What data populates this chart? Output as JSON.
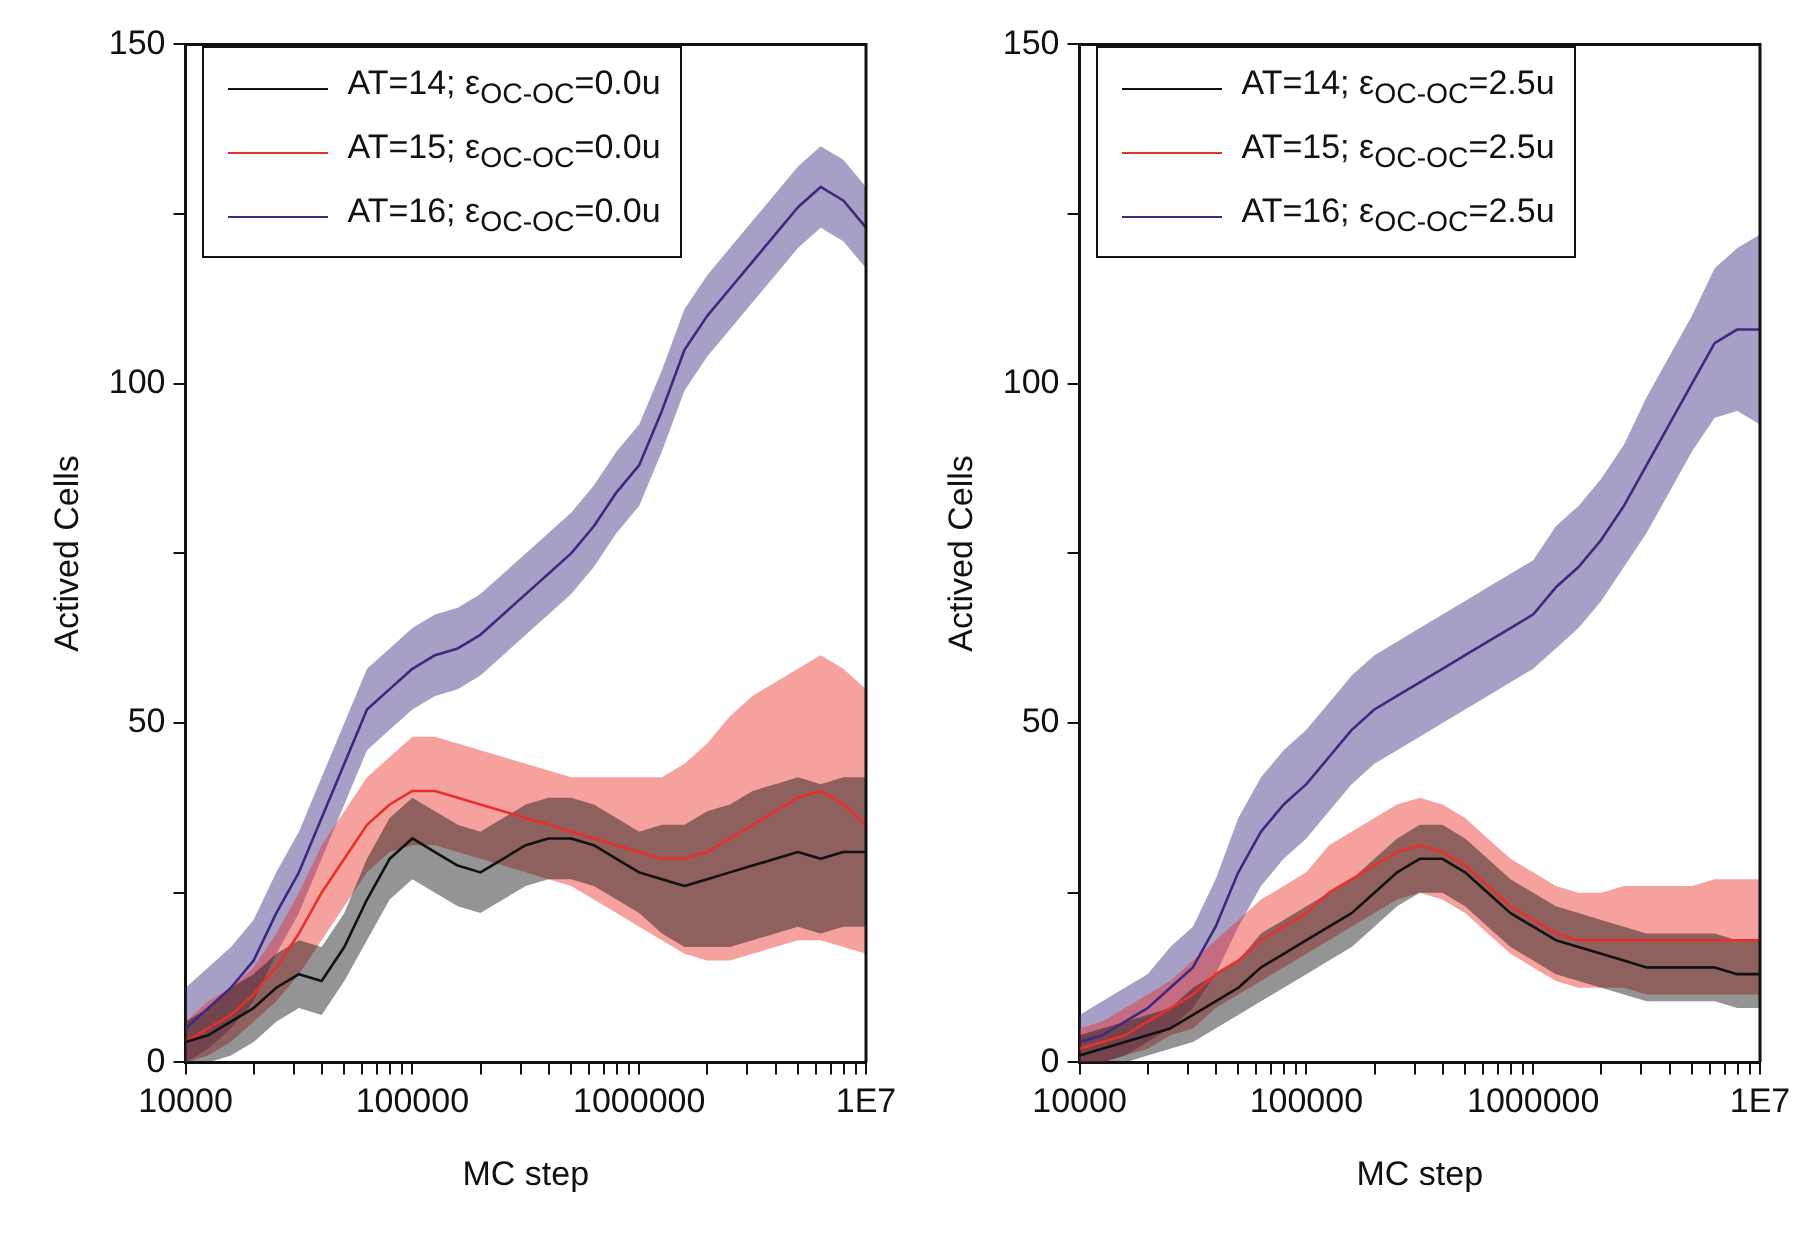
{
  "chart_data": [
    {
      "type": "line",
      "xlabel": "MC step",
      "ylabel": "Actived Cells",
      "log": "x",
      "legend": "top left",
      "grid": false,
      "xlim": [
        10000,
        10000000
      ],
      "ylim": [
        0,
        150
      ],
      "xticks": [
        10000,
        {
          "value": 20000,
          "label": null
        },
        {
          "value": 30000,
          "label": null
        },
        {
          "value": 40000,
          "label": null
        },
        {
          "value": 50000,
          "label": null
        },
        {
          "value": 60000,
          "label": null
        },
        {
          "value": 70000,
          "label": null
        },
        {
          "value": 80000,
          "label": null
        },
        {
          "value": 90000,
          "label": null
        },
        100000,
        {
          "value": 200000,
          "label": null
        },
        {
          "value": 300000,
          "label": null
        },
        {
          "value": 400000,
          "label": null
        },
        {
          "value": 500000,
          "label": null
        },
        {
          "value": 600000,
          "label": null
        },
        {
          "value": 700000,
          "label": null
        },
        {
          "value": 800000,
          "label": null
        },
        {
          "value": 900000,
          "label": null
        },
        1000000,
        {
          "value": 2000000,
          "label": null
        },
        {
          "value": 3000000,
          "label": null
        },
        {
          "value": 4000000,
          "label": null
        },
        {
          "value": 5000000,
          "label": null
        },
        {
          "value": 6000000,
          "label": null
        },
        {
          "value": 7000000,
          "label": null
        },
        {
          "value": 8000000,
          "label": null
        },
        {
          "value": 9000000,
          "label": null
        },
        {
          "value": 10000000,
          "label": "1E7"
        }
      ],
      "yticks": [
        0,
        {
          "value": 25,
          "label": null
        },
        50,
        {
          "value": 75,
          "label": null
        },
        100,
        {
          "value": 125,
          "label": null
        },
        150
      ],
      "x": [
        10000,
        12589,
        15849,
        19953,
        25119,
        31623,
        39811,
        50119,
        63096,
        79433,
        100000,
        125893,
        158489,
        199526,
        251189,
        316228,
        398107,
        501187,
        630957,
        794328,
        1000000,
        1258925,
        1584893,
        1995262,
        2511886,
        3162278,
        3981072,
        5011872,
        6309573,
        7943282,
        10000000
      ],
      "series": [
        {
          "name": "AT=14; ε$_{OC-OC}$=0.0u",
          "color": "#111111",
          "values": [
            3,
            4,
            6,
            8,
            11,
            13,
            12,
            17,
            24,
            30,
            33,
            31,
            29,
            28,
            30,
            32,
            33,
            33,
            32,
            30,
            28,
            27,
            26,
            27,
            28,
            29,
            30,
            31,
            30,
            31,
            31
          ],
          "lower": [
            0,
            0,
            1,
            3,
            6,
            8,
            7,
            12,
            18,
            24,
            27,
            25,
            23,
            22,
            24,
            26,
            27,
            27,
            26,
            24,
            22,
            19,
            17,
            17,
            17,
            18,
            19,
            20,
            19,
            20,
            20
          ],
          "upper": [
            6,
            8,
            11,
            13,
            16,
            18,
            17,
            22,
            30,
            36,
            39,
            37,
            35,
            34,
            36,
            38,
            39,
            39,
            38,
            36,
            34,
            35,
            35,
            37,
            38,
            40,
            41,
            42,
            41,
            42,
            42
          ]
        },
        {
          "name": "AT=15; ε$_{OC-OC}$=0.0u",
          "color": "#e8302a",
          "values": [
            3,
            5,
            7,
            10,
            14,
            19,
            25,
            30,
            35,
            38,
            40,
            40,
            39,
            38,
            37,
            36,
            35,
            34,
            33,
            32,
            31,
            30,
            30,
            31,
            33,
            35,
            37,
            39,
            40,
            38,
            35
          ],
          "lower": [
            0,
            1,
            3,
            6,
            9,
            13,
            18,
            23,
            28,
            31,
            32,
            32,
            31,
            30,
            29,
            28,
            27,
            26,
            24,
            22,
            20,
            18,
            16,
            15,
            15,
            16,
            17,
            18,
            18,
            17,
            16
          ],
          "upper": [
            6,
            9,
            11,
            14,
            19,
            25,
            32,
            37,
            42,
            45,
            48,
            48,
            47,
            46,
            45,
            44,
            43,
            42,
            42,
            42,
            42,
            42,
            44,
            47,
            51,
            54,
            56,
            58,
            60,
            58,
            55
          ]
        },
        {
          "name": "AT=16; ε$_{OC-OC}$=0.0u",
          "color": "#3d2a80",
          "values": [
            5,
            8,
            11,
            15,
            22,
            28,
            36,
            44,
            52,
            55,
            58,
            60,
            61,
            63,
            66,
            69,
            72,
            75,
            79,
            84,
            88,
            96,
            105,
            110,
            114,
            118,
            122,
            126,
            129,
            127,
            123
          ],
          "lower": [
            0,
            2,
            5,
            9,
            16,
            22,
            30,
            38,
            46,
            49,
            52,
            54,
            55,
            57,
            60,
            63,
            66,
            69,
            73,
            78,
            82,
            90,
            99,
            104,
            108,
            112,
            116,
            120,
            123,
            121,
            117
          ],
          "upper": [
            11,
            14,
            17,
            21,
            28,
            34,
            42,
            50,
            58,
            61,
            64,
            66,
            67,
            69,
            72,
            75,
            78,
            81,
            85,
            90,
            94,
            102,
            111,
            116,
            120,
            124,
            128,
            132,
            135,
            133,
            129
          ]
        }
      ]
    },
    {
      "type": "line",
      "xlabel": "MC step",
      "ylabel": "Actived Cells",
      "log": "x",
      "legend": "top left",
      "grid": false,
      "xlim": [
        10000,
        10000000
      ],
      "ylim": [
        0,
        150
      ],
      "xticks": [
        10000,
        {
          "value": 20000,
          "label": null
        },
        {
          "value": 30000,
          "label": null
        },
        {
          "value": 40000,
          "label": null
        },
        {
          "value": 50000,
          "label": null
        },
        {
          "value": 60000,
          "label": null
        },
        {
          "value": 70000,
          "label": null
        },
        {
          "value": 80000,
          "label": null
        },
        {
          "value": 90000,
          "label": null
        },
        100000,
        {
          "value": 200000,
          "label": null
        },
        {
          "value": 300000,
          "label": null
        },
        {
          "value": 400000,
          "label": null
        },
        {
          "value": 500000,
          "label": null
        },
        {
          "value": 600000,
          "label": null
        },
        {
          "value": 700000,
          "label": null
        },
        {
          "value": 800000,
          "label": null
        },
        {
          "value": 900000,
          "label": null
        },
        1000000,
        {
          "value": 2000000,
          "label": null
        },
        {
          "value": 3000000,
          "label": null
        },
        {
          "value": 4000000,
          "label": null
        },
        {
          "value": 5000000,
          "label": null
        },
        {
          "value": 6000000,
          "label": null
        },
        {
          "value": 7000000,
          "label": null
        },
        {
          "value": 8000000,
          "label": null
        },
        {
          "value": 9000000,
          "label": null
        },
        {
          "value": 10000000,
          "label": "1E7"
        }
      ],
      "yticks": [
        0,
        {
          "value": 25,
          "label": null
        },
        50,
        {
          "value": 75,
          "label": null
        },
        100,
        {
          "value": 125,
          "label": null
        },
        150
      ],
      "x": [
        10000,
        12589,
        15849,
        19953,
        25119,
        31623,
        39811,
        50119,
        63096,
        79433,
        100000,
        125893,
        158489,
        199526,
        251189,
        316228,
        398107,
        501187,
        630957,
        794328,
        1000000,
        1258925,
        1584893,
        1995262,
        2511886,
        3162278,
        3981072,
        5011872,
        6309573,
        7943282,
        10000000
      ],
      "series": [
        {
          "name": "AT=14; ε$_{OC-OC}$=2.5u",
          "color": "#111111",
          "values": [
            1,
            2,
            3,
            4,
            5,
            7,
            9,
            11,
            14,
            16,
            18,
            20,
            22,
            25,
            28,
            30,
            30,
            28,
            25,
            22,
            20,
            18,
            17,
            16,
            15,
            14,
            14,
            14,
            14,
            13,
            13
          ],
          "lower": [
            0,
            0,
            0,
            1,
            2,
            3,
            5,
            7,
            9,
            11,
            13,
            15,
            17,
            20,
            23,
            25,
            25,
            23,
            20,
            17,
            15,
            13,
            12,
            11,
            10,
            9,
            9,
            9,
            9,
            8,
            8
          ],
          "upper": [
            4,
            5,
            6,
            7,
            8,
            11,
            13,
            15,
            19,
            21,
            23,
            25,
            27,
            30,
            33,
            35,
            35,
            33,
            30,
            27,
            25,
            23,
            22,
            21,
            20,
            19,
            19,
            19,
            19,
            18,
            18
          ]
        },
        {
          "name": "AT=15; ε$_{OC-OC}$=2.5u",
          "color": "#e8302a",
          "values": [
            2,
            3,
            4,
            6,
            8,
            10,
            13,
            15,
            18,
            20,
            22,
            25,
            27,
            29,
            31,
            32,
            31,
            29,
            26,
            23,
            21,
            19,
            18,
            18,
            18,
            18,
            18,
            18,
            18,
            18,
            18
          ],
          "lower": [
            0,
            0,
            1,
            2,
            4,
            5,
            8,
            10,
            12,
            14,
            16,
            18,
            20,
            22,
            24,
            25,
            24,
            22,
            19,
            16,
            14,
            12,
            11,
            11,
            11,
            10,
            10,
            10,
            10,
            10,
            10
          ],
          "upper": [
            5,
            6,
            8,
            10,
            12,
            15,
            18,
            21,
            24,
            26,
            28,
            32,
            34,
            36,
            38,
            39,
            38,
            36,
            33,
            30,
            28,
            26,
            25,
            25,
            26,
            26,
            26,
            26,
            27,
            27,
            27
          ]
        },
        {
          "name": "AT=16; ε$_{OC-OC}$=2.5u",
          "color": "#3d2a80",
          "values": [
            3,
            4,
            6,
            8,
            11,
            14,
            20,
            28,
            34,
            38,
            41,
            45,
            49,
            52,
            54,
            56,
            58,
            60,
            62,
            64,
            66,
            70,
            73,
            77,
            82,
            88,
            94,
            100,
            106,
            108,
            108
          ],
          "lower": [
            0,
            0,
            1,
            3,
            5,
            8,
            13,
            20,
            26,
            30,
            33,
            37,
            41,
            44,
            46,
            48,
            50,
            52,
            54,
            56,
            58,
            61,
            64,
            68,
            73,
            78,
            84,
            90,
            95,
            96,
            94
          ],
          "upper": [
            7,
            9,
            11,
            13,
            17,
            20,
            27,
            36,
            42,
            46,
            49,
            53,
            57,
            60,
            62,
            64,
            66,
            68,
            70,
            72,
            74,
            79,
            82,
            86,
            91,
            98,
            104,
            110,
            117,
            120,
            122
          ]
        }
      ]
    }
  ]
}
